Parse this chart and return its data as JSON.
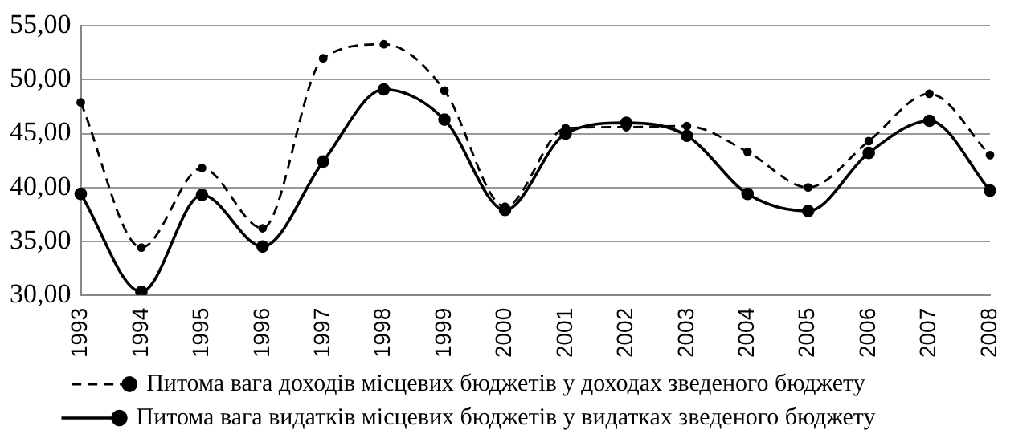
{
  "chart_data": {
    "type": "line",
    "categories": [
      "1993",
      "1994",
      "1995",
      "1996",
      "1997",
      "1998",
      "1999",
      "2000",
      "2001",
      "2002",
      "2003",
      "2004",
      "2005",
      "2006",
      "2007",
      "2008"
    ],
    "series": [
      {
        "name": "Питома вага доходів місцевих бюджетів у доходах зведеного бюджету",
        "color": "#000000",
        "line_style": "dashed",
        "values": [
          47.9,
          34.4,
          41.8,
          36.2,
          52.0,
          53.3,
          49.0,
          38.2,
          45.5,
          45.6,
          45.7,
          43.3,
          40.0,
          44.3,
          48.7,
          43.0
        ]
      },
      {
        "name": "Питома вага видатків місцевих бюджетів у видатках зведеного бюджету",
        "color": "#000000",
        "line_style": "solid",
        "values": [
          39.4,
          30.3,
          39.3,
          34.5,
          42.4,
          49.1,
          46.3,
          37.9,
          45.0,
          46.0,
          44.8,
          39.4,
          37.8,
          43.2,
          46.2,
          39.7
        ]
      }
    ],
    "ylim": [
      30,
      55
    ],
    "yticks": [
      {
        "value": 30,
        "label": "30,00"
      },
      {
        "value": 35,
        "label": "35,00"
      },
      {
        "value": 40,
        "label": "40,00"
      },
      {
        "value": 45,
        "label": "45,00"
      },
      {
        "value": 50,
        "label": "50,00"
      },
      {
        "value": 55,
        "label": "55,00"
      }
    ],
    "grid": "y",
    "legend": "bottom",
    "marker": "circle"
  }
}
